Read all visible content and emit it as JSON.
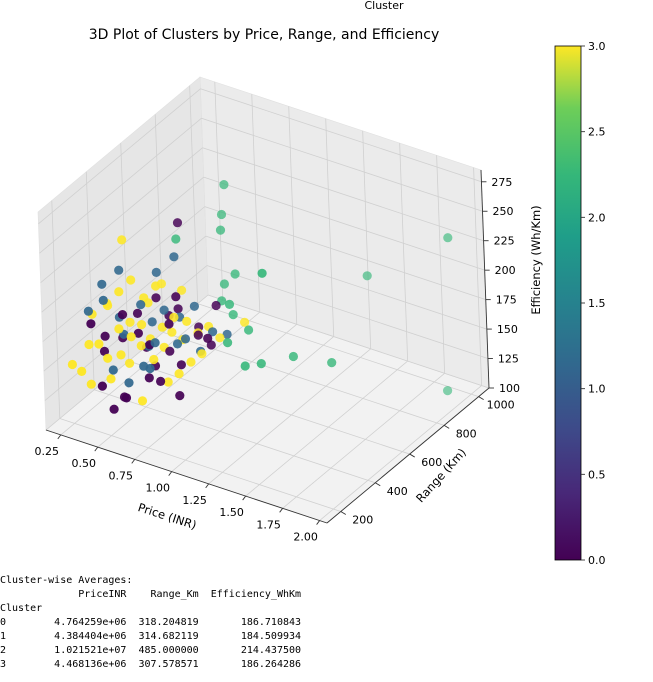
{
  "chart_data": {
    "type": "scatter",
    "title": "3D Plot of Clusters by Price, Range, and Efficiency",
    "xlabel": "Price (INR)",
    "ylabel": "Range (Km)",
    "zlabel": "Efficiency (Wh/Km)",
    "xlim": [
      0.15,
      2.05
    ],
    "ylim": [
      120,
      1060
    ],
    "zlim": [
      100,
      285
    ],
    "x_ticks": [
      "0.25",
      "0.50",
      "0.75",
      "1.00",
      "1.25",
      "1.50",
      "1.75",
      "2.00"
    ],
    "y_ticks": [
      "200",
      "400",
      "600",
      "800",
      "1000"
    ],
    "z_ticks": [
      "100",
      "125",
      "150",
      "175",
      "200",
      "225",
      "250",
      "275"
    ],
    "colorbar": {
      "label": "Cluster",
      "range": [
        0,
        3
      ],
      "ticks": [
        "0.0",
        "0.5",
        "1.0",
        "1.5",
        "2.0",
        "2.5",
        "3.0"
      ],
      "colormap": "viridis"
    },
    "series": [
      {
        "name": "0",
        "color": "#440154",
        "points": [
          [
            0.35,
            230,
            185
          ],
          [
            0.42,
            250,
            175
          ],
          [
            0.48,
            300,
            170
          ],
          [
            0.52,
            270,
            195
          ],
          [
            0.55,
            330,
            190
          ],
          [
            0.58,
            350,
            160
          ],
          [
            0.6,
            290,
            180
          ],
          [
            0.62,
            380,
            200
          ],
          [
            0.65,
            310,
            170
          ],
          [
            0.68,
            400,
            185
          ],
          [
            0.7,
            260,
            150
          ],
          [
            0.72,
            420,
            190
          ],
          [
            0.75,
            340,
            165
          ],
          [
            0.78,
            360,
            210
          ],
          [
            0.8,
            300,
            195
          ],
          [
            0.82,
            450,
            175
          ],
          [
            0.85,
            320,
            160
          ],
          [
            0.88,
            280,
            140
          ],
          [
            0.9,
            380,
            180
          ],
          [
            0.95,
            410,
            170
          ],
          [
            1.0,
            350,
            185
          ],
          [
            0.45,
            200,
            140
          ],
          [
            0.5,
            220,
            120
          ],
          [
            0.55,
            240,
            130
          ],
          [
            0.6,
            210,
            135
          ],
          [
            0.4,
            260,
            160
          ],
          [
            0.66,
            330,
            150
          ],
          [
            0.74,
            290,
            145
          ],
          [
            0.92,
            470,
            195
          ],
          [
            0.64,
            500,
            250
          ]
        ]
      },
      {
        "name": "1",
        "color": "#31688e",
        "points": [
          [
            0.3,
            260,
            190
          ],
          [
            0.38,
            280,
            200
          ],
          [
            0.45,
            310,
            185
          ],
          [
            0.5,
            290,
            175
          ],
          [
            0.55,
            350,
            195
          ],
          [
            0.6,
            370,
            180
          ],
          [
            0.62,
            330,
            165
          ],
          [
            0.66,
            390,
            190
          ],
          [
            0.7,
            300,
            175
          ],
          [
            0.74,
            410,
            185
          ],
          [
            0.78,
            360,
            170
          ],
          [
            0.82,
            430,
            195
          ],
          [
            0.86,
            340,
            180
          ],
          [
            0.9,
            390,
            165
          ],
          [
            0.95,
            420,
            180
          ],
          [
            1.0,
            460,
            175
          ],
          [
            0.48,
            240,
            150
          ],
          [
            0.56,
            260,
            140
          ],
          [
            0.64,
            280,
            155
          ],
          [
            0.72,
            250,
            160
          ],
          [
            0.35,
            300,
            210
          ],
          [
            0.42,
            340,
            220
          ],
          [
            0.58,
            420,
            215
          ],
          [
            0.68,
            440,
            230
          ]
        ]
      },
      {
        "name": "2",
        "color": "#35b779",
        "points": [
          [
            1.9,
            950,
            105
          ],
          [
            1.45,
            300,
            265
          ],
          [
            2.0,
            900,
            245
          ],
          [
            1.25,
            350,
            172
          ],
          [
            1.3,
            400,
            170
          ],
          [
            1.4,
            500,
            168
          ],
          [
            1.6,
            550,
            165
          ],
          [
            1.05,
            420,
            175
          ],
          [
            1.1,
            500,
            178
          ],
          [
            0.95,
            540,
            180
          ],
          [
            0.85,
            560,
            185
          ],
          [
            0.8,
            620,
            190
          ],
          [
            0.9,
            600,
            205
          ],
          [
            0.75,
            650,
            230
          ],
          [
            0.7,
            700,
            235
          ],
          [
            0.7,
            720,
            258
          ],
          [
            1.0,
            480,
            198
          ],
          [
            0.6,
            520,
            232
          ],
          [
            1.5,
            850,
            198
          ]
        ]
      },
      {
        "name": "3",
        "color": "#fde725",
        "points": [
          [
            0.25,
            200,
            150
          ],
          [
            0.3,
            210,
            145
          ],
          [
            0.32,
            240,
            165
          ],
          [
            0.35,
            220,
            135
          ],
          [
            0.4,
            230,
            170
          ],
          [
            0.42,
            260,
            155
          ],
          [
            0.45,
            250,
            140
          ],
          [
            0.48,
            280,
            180
          ],
          [
            0.5,
            270,
            160
          ],
          [
            0.52,
            300,
            150
          ],
          [
            0.55,
            290,
            175
          ],
          [
            0.58,
            320,
            165
          ],
          [
            0.6,
            310,
            185
          ],
          [
            0.62,
            340,
            170
          ],
          [
            0.65,
            330,
            155
          ],
          [
            0.68,
            360,
            180
          ],
          [
            0.7,
            350,
            165
          ],
          [
            0.72,
            380,
            175
          ],
          [
            0.75,
            370,
            190
          ],
          [
            0.78,
            390,
            170
          ],
          [
            0.8,
            400,
            185
          ],
          [
            0.85,
            420,
            175
          ],
          [
            0.9,
            440,
            180
          ],
          [
            0.95,
            460,
            170
          ],
          [
            0.38,
            300,
            195
          ],
          [
            0.44,
            320,
            205
          ],
          [
            0.5,
            340,
            215
          ],
          [
            0.56,
            360,
            200
          ],
          [
            0.62,
            380,
            210
          ],
          [
            0.66,
            250,
            130
          ],
          [
            0.3,
            280,
            185
          ],
          [
            0.36,
            320,
            190
          ],
          [
            0.46,
            360,
            175
          ],
          [
            0.54,
            400,
            190
          ],
          [
            0.6,
            430,
            205
          ],
          [
            0.7,
            460,
            200
          ],
          [
            0.78,
            300,
            145
          ],
          [
            0.82,
            330,
            150
          ],
          [
            0.88,
            350,
            160
          ],
          [
            0.92,
            380,
            165
          ],
          [
            1.05,
            520,
            180
          ],
          [
            0.4,
            380,
            240
          ]
        ]
      }
    ]
  },
  "output_text": {
    "heading": "Cluster-wise Averages:",
    "columns_line": "             PriceINR    Range_Km  Efficiency_WhKm",
    "index_name": "Cluster",
    "rows": [
      "0        4.764259e+06  318.204819       186.710843",
      "1        4.384404e+06  314.682119       184.509934",
      "2        1.021521e+07  485.000000       214.437500",
      "3        4.468136e+06  307.578571       186.264286"
    ]
  }
}
